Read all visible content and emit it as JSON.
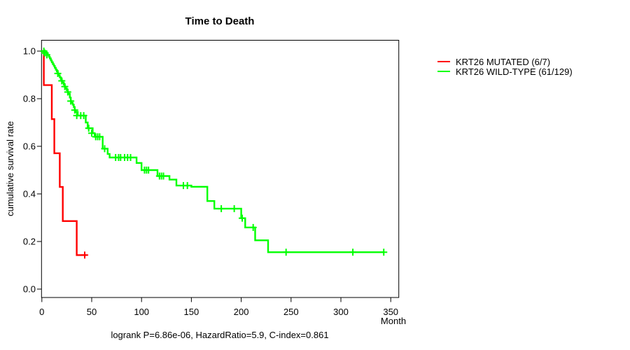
{
  "chart_data": {
    "type": "line",
    "subtype": "kaplan-meier-step",
    "title": "Time to Death",
    "xlabel": "Month",
    "ylabel": "cumulative survival rate",
    "xlim": [
      0,
      350
    ],
    "ylim": [
      0.0,
      1.0
    ],
    "xticks": [
      0,
      50,
      100,
      150,
      200,
      250,
      300,
      350
    ],
    "yticks": [
      0.0,
      0.2,
      0.4,
      0.6,
      0.8,
      1.0
    ],
    "grid": false,
    "legend_position": "right-outside",
    "footer": "logrank P=6.86e-06, HazardRatio=5.9, C-index=0.861",
    "legend": [
      {
        "label": "KRT26 MUTATED (6/7)",
        "color": "#ff0000"
      },
      {
        "label": "KRT26 WILD-TYPE (61/129)",
        "color": "#00ff00"
      }
    ],
    "series": [
      {
        "name": "KRT26 MUTATED (6/7)",
        "slug": "mutated",
        "color": "#ff0000",
        "steps": [
          [
            0,
            1.0
          ],
          [
            2,
            0.857
          ],
          [
            10,
            0.714
          ],
          [
            12.5,
            0.571
          ],
          [
            18,
            0.429
          ],
          [
            21,
            0.286
          ],
          [
            35,
            0.143
          ],
          [
            45,
            0.143
          ]
        ],
        "censors": [
          [
            43,
            0.143
          ]
        ]
      },
      {
        "name": "KRT26 WILD-TYPE (61/129)",
        "slug": "wild-type",
        "color": "#00ff00",
        "steps": [
          [
            0,
            1.0
          ],
          [
            4,
            0.992
          ],
          [
            6,
            0.984
          ],
          [
            7,
            0.976
          ],
          [
            8,
            0.969
          ],
          [
            9,
            0.961
          ],
          [
            10,
            0.953
          ],
          [
            11,
            0.945
          ],
          [
            12,
            0.938
          ],
          [
            13,
            0.93
          ],
          [
            14,
            0.922
          ],
          [
            15,
            0.914
          ],
          [
            16,
            0.906
          ],
          [
            17,
            0.898
          ],
          [
            18,
            0.89
          ],
          [
            19,
            0.882
          ],
          [
            20,
            0.875
          ],
          [
            21,
            0.867
          ],
          [
            22,
            0.859
          ],
          [
            23,
            0.851
          ],
          [
            24,
            0.843
          ],
          [
            25,
            0.836
          ],
          [
            26,
            0.828
          ],
          [
            27,
            0.82
          ],
          [
            28,
            0.805
          ],
          [
            29,
            0.79
          ],
          [
            30,
            0.782
          ],
          [
            31,
            0.775
          ],
          [
            32,
            0.765
          ],
          [
            33,
            0.752
          ],
          [
            34,
            0.744
          ],
          [
            36,
            0.729
          ],
          [
            44,
            0.7
          ],
          [
            46,
            0.676
          ],
          [
            51,
            0.655
          ],
          [
            53,
            0.64
          ],
          [
            61,
            0.59
          ],
          [
            66,
            0.568
          ],
          [
            68,
            0.553
          ],
          [
            95,
            0.53
          ],
          [
            100,
            0.5
          ],
          [
            116,
            0.475
          ],
          [
            128,
            0.46
          ],
          [
            135,
            0.435
          ],
          [
            150,
            0.43
          ],
          [
            166,
            0.37
          ],
          [
            173,
            0.338
          ],
          [
            200,
            0.298
          ],
          [
            204,
            0.259
          ],
          [
            214,
            0.205
          ],
          [
            227,
            0.155
          ],
          [
            343,
            0.155
          ]
        ],
        "censors": [
          [
            2,
            1.0
          ],
          [
            3,
            0.992
          ],
          [
            5,
            0.984
          ],
          [
            16,
            0.906
          ],
          [
            20,
            0.875
          ],
          [
            23,
            0.851
          ],
          [
            26,
            0.828
          ],
          [
            29,
            0.79
          ],
          [
            33,
            0.752
          ],
          [
            35,
            0.729
          ],
          [
            39,
            0.729
          ],
          [
            42,
            0.729
          ],
          [
            47,
            0.676
          ],
          [
            50,
            0.655
          ],
          [
            54,
            0.64
          ],
          [
            56,
            0.64
          ],
          [
            58,
            0.64
          ],
          [
            63,
            0.59
          ],
          [
            74,
            0.553
          ],
          [
            77,
            0.553
          ],
          [
            79,
            0.553
          ],
          [
            83,
            0.553
          ],
          [
            86,
            0.553
          ],
          [
            89,
            0.553
          ],
          [
            103,
            0.5
          ],
          [
            105,
            0.5
          ],
          [
            107,
            0.5
          ],
          [
            118,
            0.475
          ],
          [
            120,
            0.475
          ],
          [
            122,
            0.475
          ],
          [
            142,
            0.435
          ],
          [
            146,
            0.435
          ],
          [
            180,
            0.338
          ],
          [
            193,
            0.338
          ],
          [
            201,
            0.298
          ],
          [
            212,
            0.259
          ],
          [
            245,
            0.155
          ],
          [
            312,
            0.155
          ],
          [
            343,
            0.155
          ]
        ]
      }
    ]
  }
}
